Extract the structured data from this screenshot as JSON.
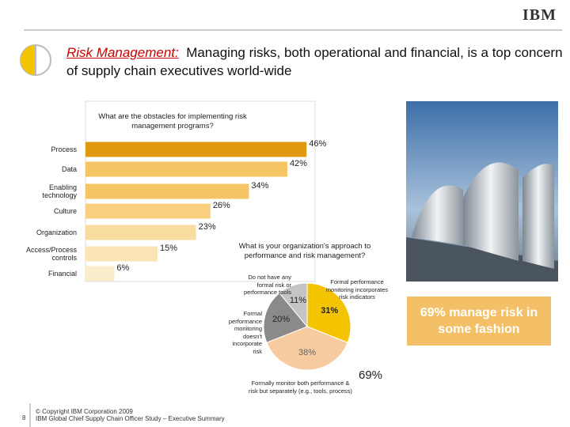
{
  "header": {
    "logo": "IBM",
    "title_highlight": "Risk Management:",
    "title": "Managing risks, both operational and financial, is a top concern of supply chain executives world-wide"
  },
  "chart_data": [
    {
      "type": "bar",
      "title": "What are the obstacles for implementing risk management programs?",
      "categories": [
        "Process",
        "Data",
        "Enabling technology",
        "Culture",
        "Organization",
        "Access/Process controls",
        "Financial"
      ],
      "values": [
        46,
        42,
        34,
        26,
        23,
        15,
        6
      ],
      "value_labels": [
        "46%",
        "42%",
        "34%",
        "26%",
        "23%",
        "15%",
        "6%"
      ],
      "colors": [
        "#e0980e",
        "#f5c563",
        "#f5c563",
        "#f7cf7d",
        "#f9dc9f",
        "#fae4b3",
        "#fbeccb"
      ]
    },
    {
      "type": "pie",
      "title": "What is your organization's approach to performance and risk management?",
      "categories": [
        "Formal performance monitoring incorporates risk indicators",
        "Formally monitor both performance & risk but separately (e.g., tools, process)",
        "Formal performance monitoring doesn't incorporate risk",
        "Do not have any formal risk or performance tools"
      ],
      "values": [
        31,
        38,
        20,
        11
      ],
      "value_labels": [
        "31%",
        "38%",
        "20%",
        "11%"
      ],
      "colors": [
        "#f5c400",
        "#f7cba0",
        "#8a8a8a",
        "#c4c4c4"
      ],
      "annotation": "69%"
    }
  ],
  "callout": "69% manage risk in some fashion",
  "footer": {
    "page": "8",
    "copyright": "© Copyright IBM Corporation 2009",
    "source": "IBM Global Chief Supply Chain Officer Study – Executive Summary"
  }
}
